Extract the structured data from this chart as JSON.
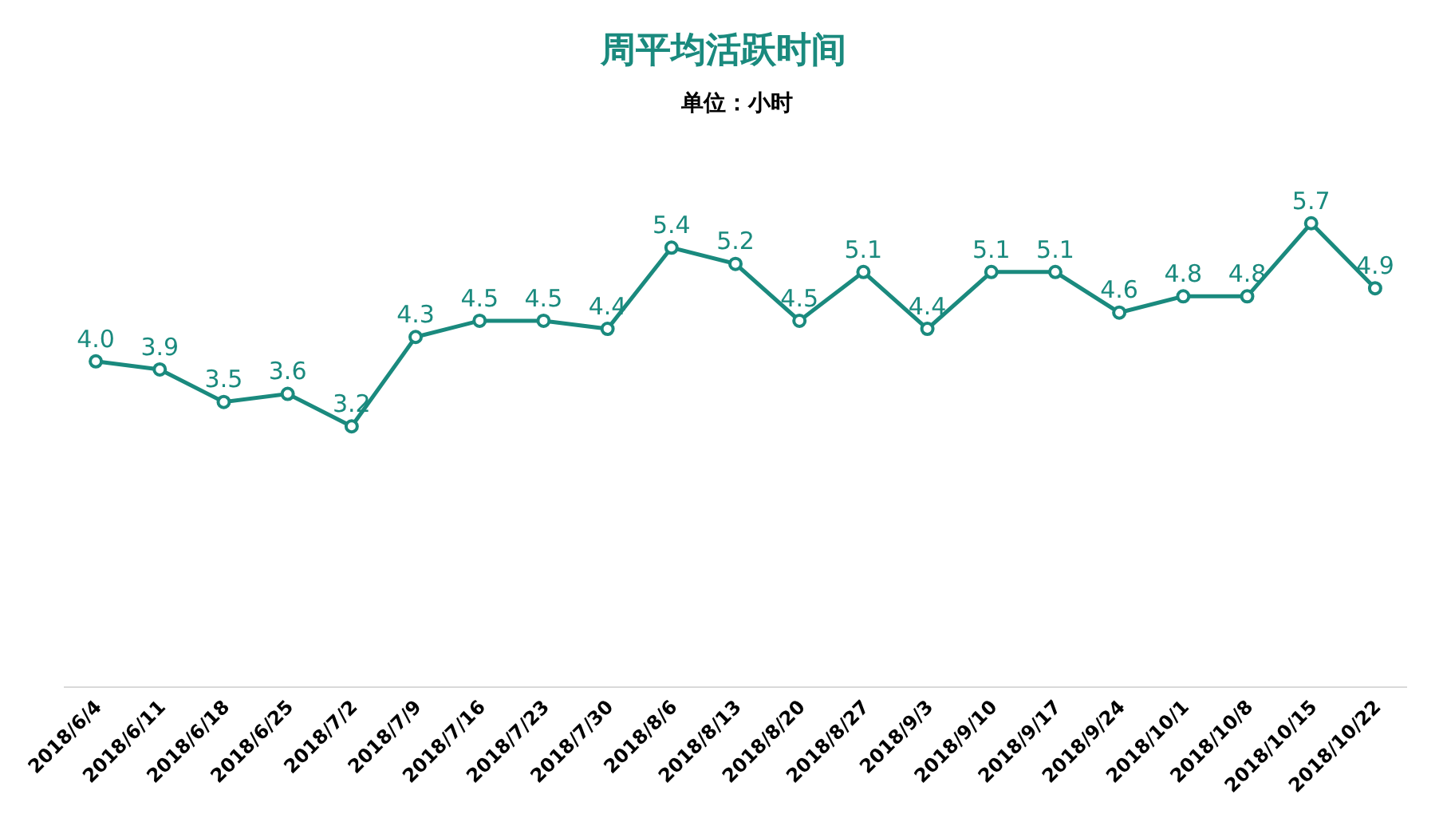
{
  "chart_data": {
    "type": "line",
    "title": "周平均活跃时间",
    "subtitle": "单位：小时",
    "categories": [
      "2018/6/4",
      "2018/6/11",
      "2018/6/18",
      "2018/6/25",
      "2018/7/2",
      "2018/7/9",
      "2018/7/16",
      "2018/7/23",
      "2018/7/30",
      "2018/8/6",
      "2018/8/13",
      "2018/8/20",
      "2018/8/27",
      "2018/9/3",
      "2018/9/10",
      "2018/9/17",
      "2018/9/24",
      "2018/10/1",
      "2018/10/8",
      "2018/10/15",
      "2018/10/22"
    ],
    "series": [
      {
        "color": "#1a8a7e",
        "values": [
          4.0,
          3.9,
          3.5,
          3.6,
          3.2,
          4.3,
          4.5,
          4.5,
          4.4,
          5.4,
          5.2,
          4.5,
          5.1,
          4.4,
          5.1,
          5.1,
          4.6,
          4.8,
          4.8,
          5.7,
          4.9
        ],
        "value_labels": [
          "4.0",
          "3.9",
          "3.5",
          "3.6",
          "3.2",
          "4.3",
          "4.5",
          "4.5",
          "4.4",
          "5.4",
          "5.2",
          "4.5",
          "5.1",
          "4.4",
          "5.1",
          "5.1",
          "4.6",
          "4.8",
          "4.8",
          "5.7",
          "4.9"
        ]
      }
    ],
    "tick_labels": "x",
    "marker": "circle",
    "line_style": "solid",
    "legend": false
  }
}
